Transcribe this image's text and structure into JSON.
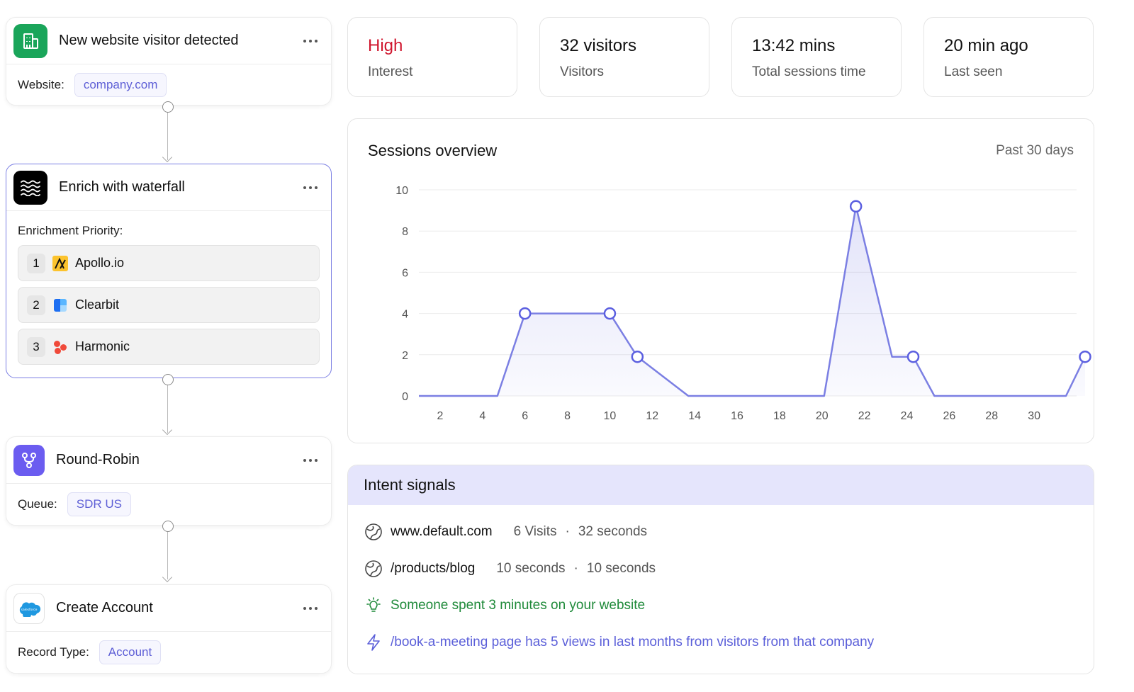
{
  "workflow": {
    "trigger": {
      "title": "New website visitor detected",
      "field_label": "Website:",
      "field_value": "company.com",
      "icon": "building-icon",
      "color": "#1aa55a"
    },
    "enrich": {
      "title": "Enrich with waterfall",
      "icon": "waves-icon",
      "priority_label": "Enrichment Priority:",
      "providers": [
        {
          "rank": "1",
          "name": "Apollo.io",
          "icon": "apollo-logo"
        },
        {
          "rank": "2",
          "name": "Clearbit",
          "icon": "clearbit-logo"
        },
        {
          "rank": "3",
          "name": "Harmonic",
          "icon": "harmonic-logo"
        }
      ]
    },
    "route": {
      "title": "Round-Robin",
      "field_label": "Queue:",
      "field_value": "SDR US",
      "icon": "branch-icon",
      "color": "#6b5cf0"
    },
    "create": {
      "title": "Create Account",
      "field_label": "Record Type:",
      "field_value": "Account",
      "icon": "salesforce-logo",
      "logo_text": "salesforce"
    }
  },
  "stats": [
    {
      "value": "High",
      "label": "Interest",
      "color": "#d0162e"
    },
    {
      "value": "32 visitors",
      "label": "Visitors"
    },
    {
      "value": "13:42 mins",
      "label": "Total sessions time"
    },
    {
      "value": "20 min ago",
      "label": "Last seen"
    }
  ],
  "sessions": {
    "title": "Sessions overview",
    "range": "Past 30 days"
  },
  "chart_data": {
    "type": "area",
    "title": "Sessions overview",
    "xlabel": "",
    "ylabel": "",
    "x_ticks": [
      2,
      4,
      6,
      8,
      10,
      12,
      14,
      16,
      18,
      20,
      22,
      24,
      26,
      28,
      30
    ],
    "y_ticks": [
      0,
      2,
      4,
      6,
      8,
      10
    ],
    "xlim": [
      1,
      32
    ],
    "ylim": [
      0,
      10
    ],
    "grid": true,
    "color": "#7b7fe3",
    "series": [
      {
        "x": [
          1,
          4.7,
          6,
          10,
          11.3,
          13.7,
          20.1,
          21.6,
          23.3,
          24.3,
          25.3,
          31.5,
          32.4
        ],
        "y": [
          0,
          0,
          4,
          4,
          1.9,
          0,
          0,
          9.2,
          1.9,
          1.9,
          0,
          0,
          1.9
        ]
      }
    ],
    "markers": [
      {
        "x": 6,
        "y": 4
      },
      {
        "x": 10,
        "y": 4
      },
      {
        "x": 11.3,
        "y": 1.9
      },
      {
        "x": 21.6,
        "y": 9.2
      },
      {
        "x": 24.3,
        "y": 1.9
      },
      {
        "x": 32.4,
        "y": 1.9
      }
    ]
  },
  "intent": {
    "title": "Intent signals",
    "rows": [
      {
        "icon": "globe-icon",
        "site": "www.default.com",
        "meta_a": "6 Visits",
        "meta_b": "32 seconds"
      },
      {
        "icon": "globe-icon",
        "site": "/products/blog",
        "meta_a": "10 seconds",
        "meta_b": "10 seconds"
      }
    ],
    "sep": "·",
    "insight": {
      "icon": "lightbulb-icon",
      "text": "Someone spent 3 minutes on your website",
      "color": "#1f8a3a"
    },
    "alert": {
      "icon": "lightning-icon",
      "text": "/book-a-meeting page has 5 views in last months from visitors from that company",
      "color": "#5b5fd9"
    }
  }
}
